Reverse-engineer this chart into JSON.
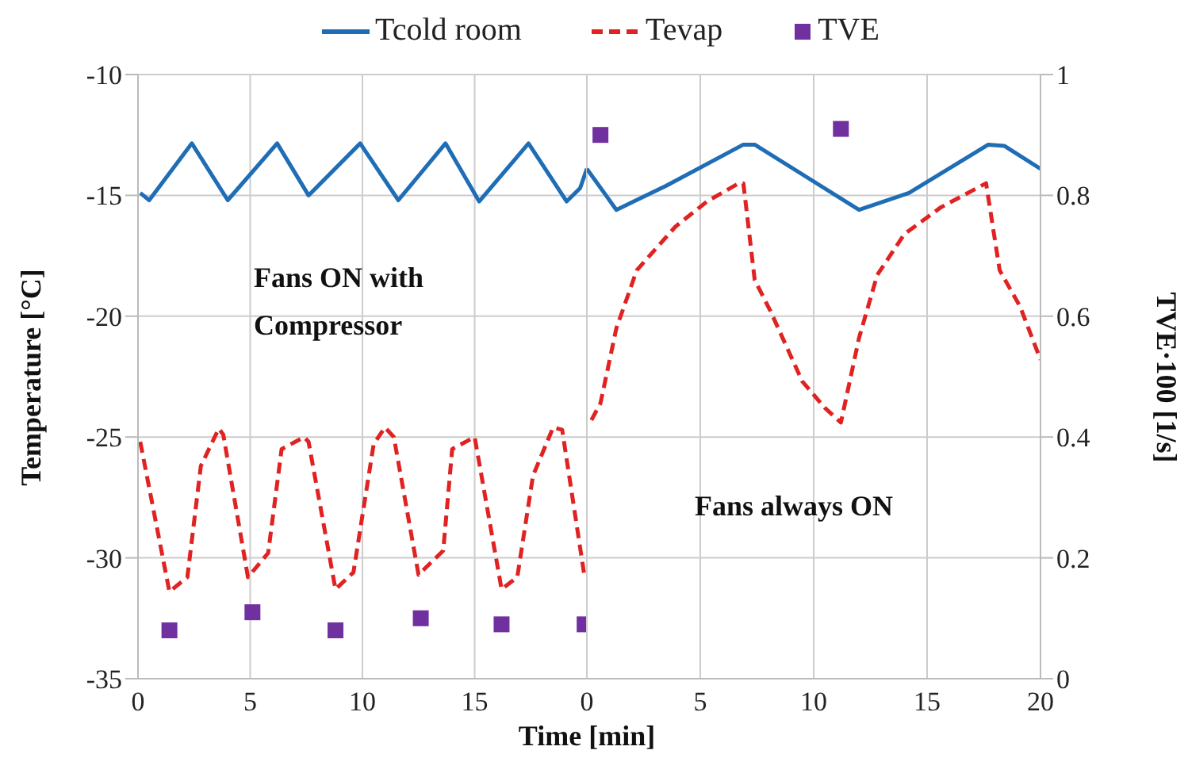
{
  "chart_data": [
    {
      "type": "line",
      "xlabel": "Time [min]",
      "ylabel": "Temperature  [°C]",
      "xlim": [
        0,
        20
      ],
      "xticks": [
        0,
        5,
        10,
        15
      ],
      "ylim": [
        -35,
        -10
      ],
      "yticks": [
        -35,
        -30,
        -25,
        -20,
        -15,
        -10
      ],
      "y2lim": [
        0,
        1
      ],
      "grid": true,
      "legend": "top",
      "annotations": [
        "Fans ON with\nCompressor"
      ],
      "series": [
        {
          "name": "Tcold room",
          "type": "line",
          "color": "#1f6db5",
          "line_style": "solid",
          "marker": "none",
          "x": [
            0.1,
            0.5,
            2.4,
            4.0,
            6.2,
            7.6,
            9.9,
            11.6,
            13.7,
            15.2,
            17.4,
            19.1,
            19.7,
            20.0
          ],
          "values": [
            -14.9,
            -15.2,
            -12.85,
            -15.2,
            -12.85,
            -15.0,
            -12.85,
            -15.2,
            -12.85,
            -15.25,
            -12.85,
            -15.25,
            -14.7,
            -13.9
          ]
        },
        {
          "name": "Tevap",
          "type": "line",
          "color": "#e02222",
          "line_style": "dashed",
          "marker": "none",
          "x": [
            0.1,
            1.4,
            2.2,
            2.8,
            3.6,
            3.8,
            4.9,
            5.8,
            6.4,
            7.4,
            7.6,
            8.8,
            9.6,
            10.5,
            11.0,
            11.4,
            12.5,
            13.6,
            14.0,
            15.0,
            16.2,
            16.9,
            17.6,
            18.5,
            18.9,
            19.9
          ],
          "values": [
            -25.2,
            -31.4,
            -30.8,
            -26.2,
            -24.65,
            -24.9,
            -30.8,
            -29.8,
            -25.5,
            -25.0,
            -25.2,
            -31.3,
            -30.6,
            -25.3,
            -24.6,
            -25.0,
            -30.7,
            -29.7,
            -25.5,
            -25.0,
            -31.3,
            -30.8,
            -26.6,
            -24.6,
            -24.7,
            -30.8
          ]
        },
        {
          "name": "TVE",
          "type": "scatter",
          "axis": "y2",
          "color": "#7030a0",
          "marker": "square",
          "x": [
            1.4,
            5.1,
            8.8,
            12.6,
            16.2,
            19.9
          ],
          "values": [
            0.08,
            0.11,
            0.08,
            0.1,
            0.09,
            0.09
          ]
        }
      ]
    },
    {
      "type": "line",
      "y2label": "TVE·100  [1/s]",
      "xlim": [
        0,
        20
      ],
      "xticks": [
        0,
        5,
        10,
        15,
        20
      ],
      "ylim": [
        -35,
        -10
      ],
      "y2lim": [
        0,
        1
      ],
      "y2ticks": [
        0,
        0.2,
        0.4,
        0.6,
        0.8,
        1
      ],
      "grid": true,
      "annotations": [
        "Fans always ON"
      ],
      "series": [
        {
          "type": "line",
          "color": "#1f6db5",
          "line_style": "solid",
          "marker": "none",
          "x": [
            0,
            1.3,
            3.5,
            6.9,
            7.4,
            12.0,
            14.2,
            17.7,
            18.4,
            20.0
          ],
          "values": [
            -13.9,
            -15.6,
            -14.6,
            -12.9,
            -12.9,
            -15.6,
            -14.9,
            -12.9,
            -12.95,
            -13.9
          ]
        },
        {
          "type": "line",
          "color": "#e02222",
          "line_style": "dashed",
          "marker": "none",
          "x": [
            0.2,
            0.6,
            1.3,
            2.2,
            3.9,
            5.3,
            6.7,
            6.9,
            7.4,
            8.1,
            9.5,
            10.5,
            11.2,
            12.0,
            12.8,
            14.0,
            15.6,
            17.6,
            18.2,
            19.1,
            20.0
          ],
          "values": [
            -24.3,
            -23.6,
            -20.5,
            -18.1,
            -16.3,
            -15.25,
            -14.5,
            -14.5,
            -18.5,
            -19.8,
            -22.7,
            -23.8,
            -24.4,
            -20.9,
            -18.3,
            -16.6,
            -15.5,
            -14.5,
            -18.1,
            -19.6,
            -21.8
          ]
        },
        {
          "type": "scatter",
          "axis": "y2",
          "color": "#7030a0",
          "marker": "square",
          "x": [
            0.6,
            11.2
          ],
          "values": [
            0.9,
            0.91
          ]
        }
      ]
    }
  ]
}
